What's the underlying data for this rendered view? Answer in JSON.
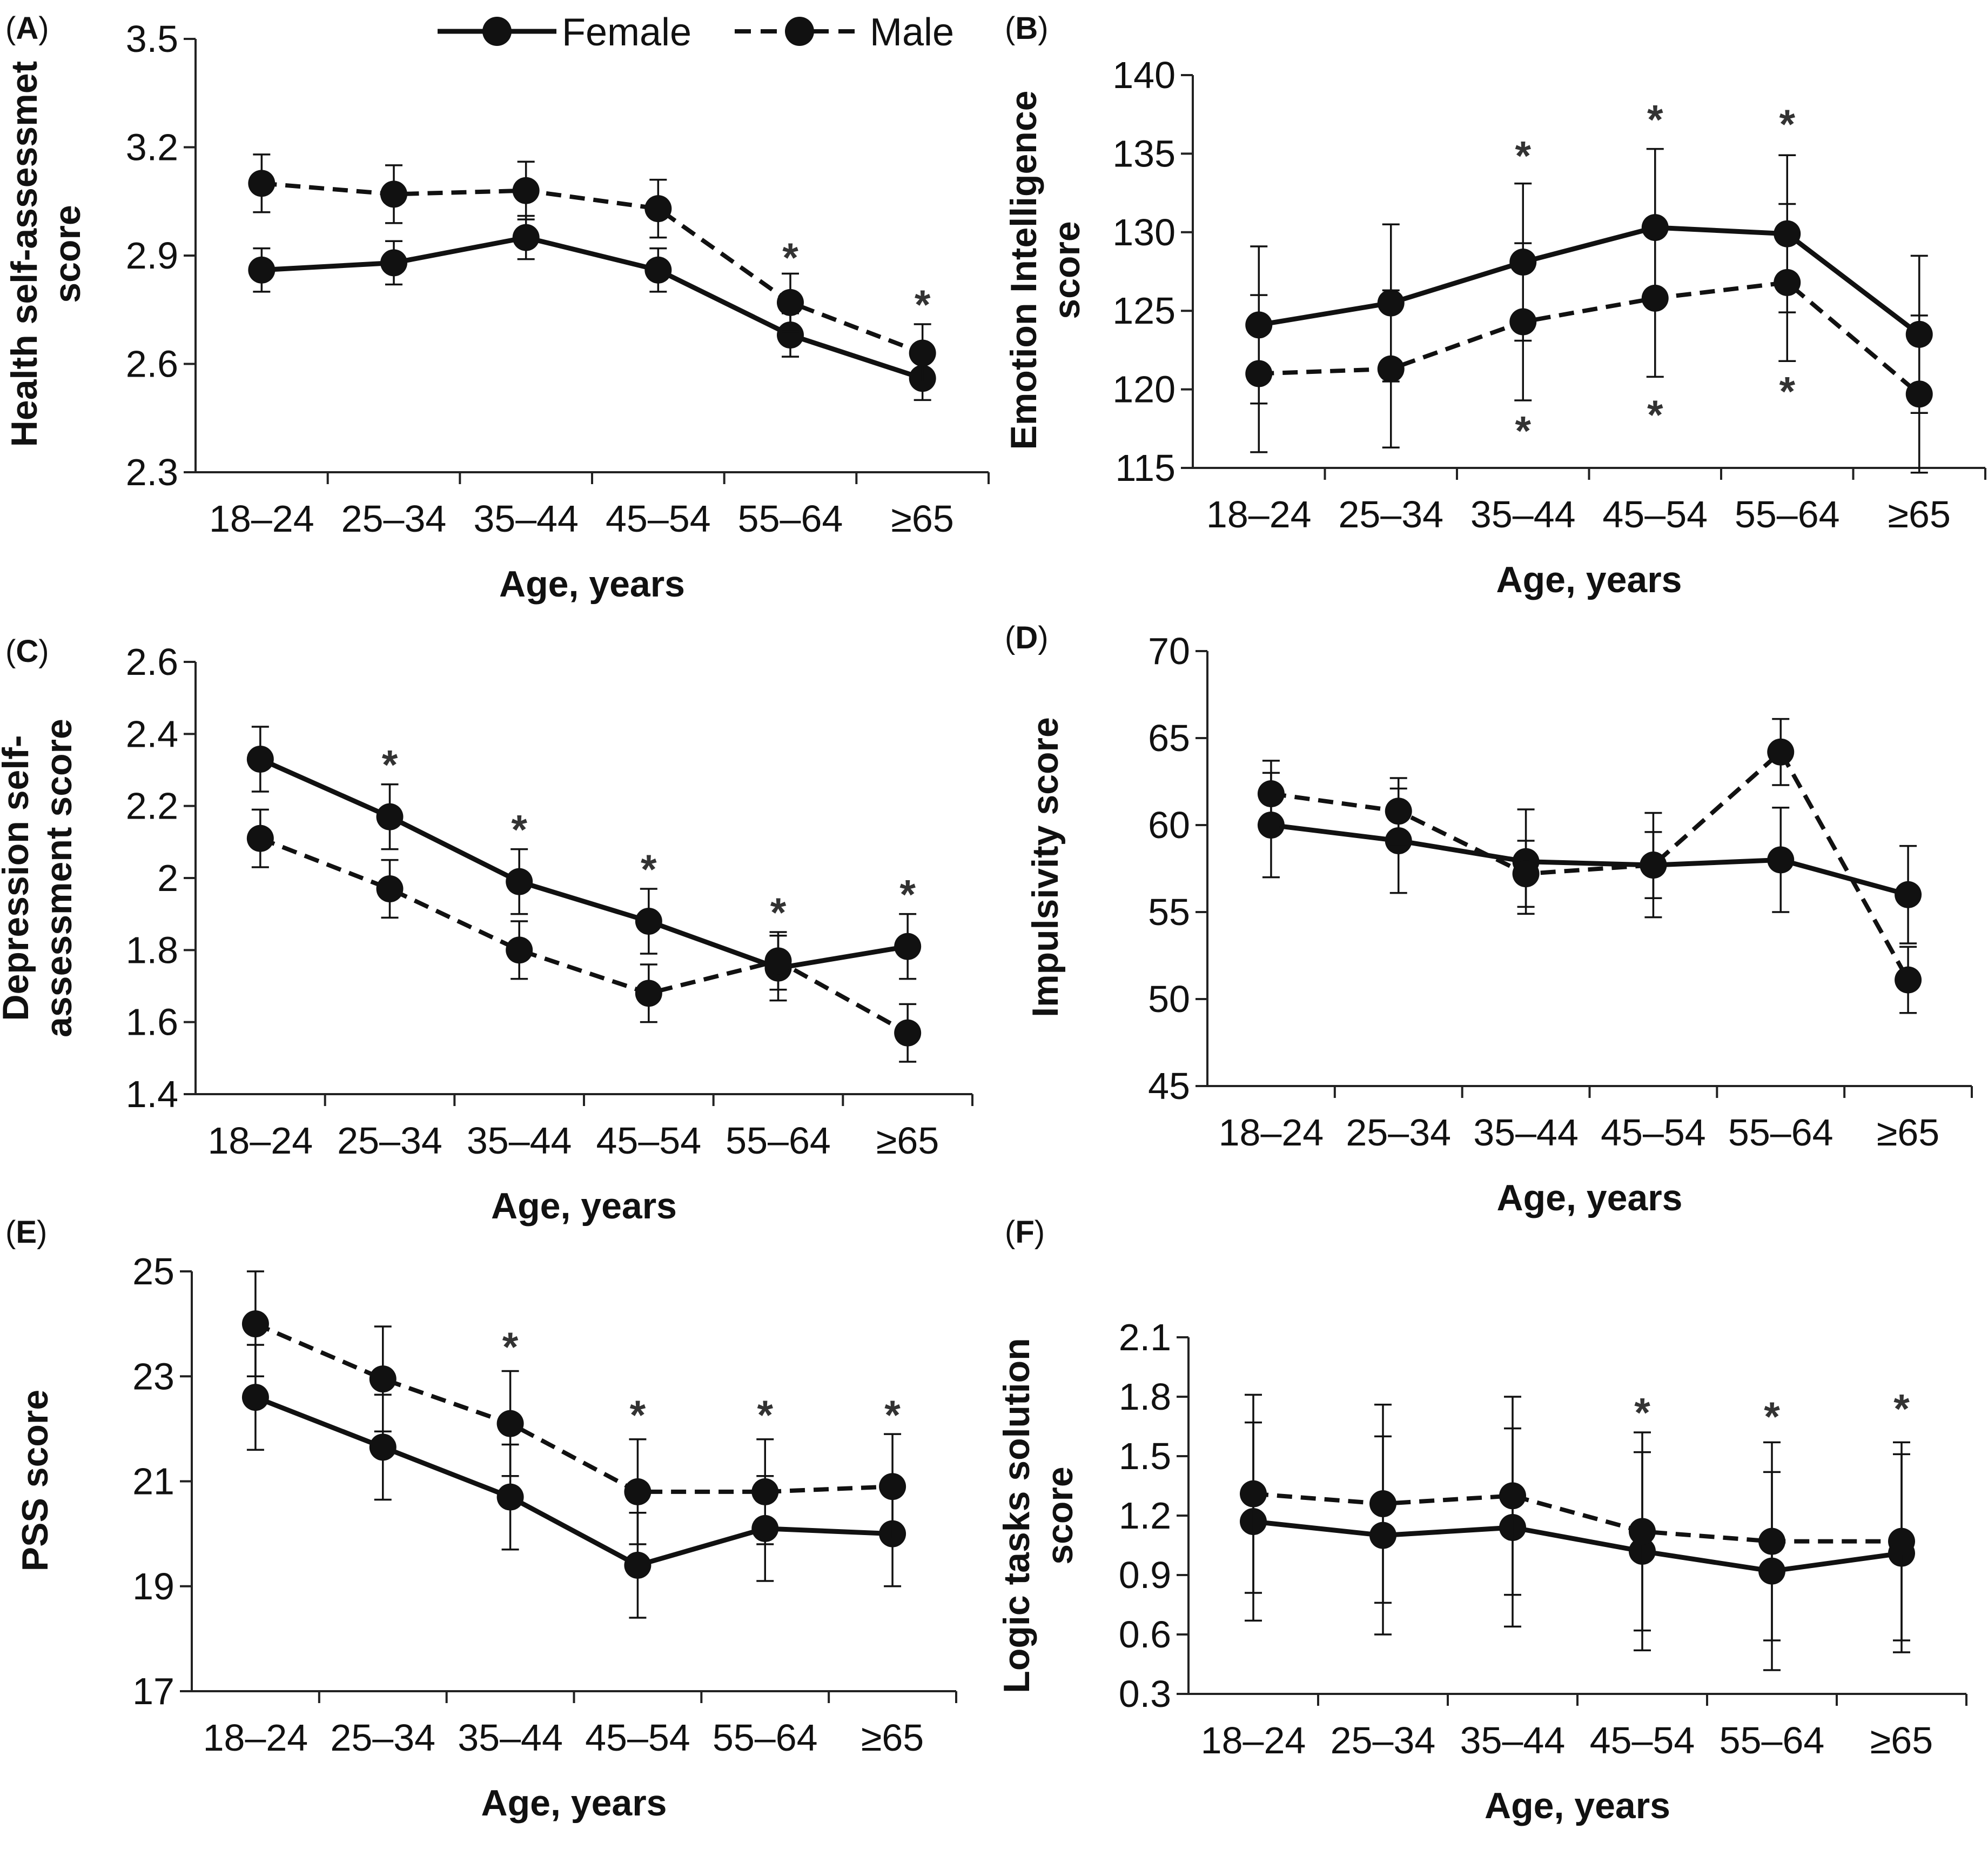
{
  "legend": {
    "female": "Female",
    "male": "Male"
  },
  "chart_data": [
    {
      "id": "A",
      "panel_label": "A",
      "type": "line",
      "ylabel": [
        "Health self-assessmet",
        "score"
      ],
      "xlabel": "Age, years",
      "categories": [
        "18–24",
        "25–34",
        "35–44",
        "45–54",
        "55–64",
        "≥65"
      ],
      "yticks": [
        "2.3",
        "2.6",
        "2.9",
        "3.2",
        "3.5"
      ],
      "ylim": [
        2.3,
        3.5
      ],
      "series": [
        {
          "name": "Female",
          "style": "solid",
          "values": [
            2.86,
            2.88,
            2.95,
            2.86,
            2.68,
            2.56
          ],
          "errors": [
            0.06,
            0.06,
            0.06,
            0.06,
            0.06,
            0.06
          ]
        },
        {
          "name": "Male",
          "style": "dashed",
          "values": [
            3.1,
            3.07,
            3.08,
            3.03,
            2.77,
            2.63
          ],
          "errors": [
            0.08,
            0.08,
            0.08,
            0.08,
            0.08,
            0.08
          ]
        }
      ],
      "significance": [
        {
          "category": "55–64",
          "marker": "*",
          "value": 2.9
        },
        {
          "category": "≥65",
          "marker": "*",
          "value": 2.77
        }
      ]
    },
    {
      "id": "B",
      "panel_label": "B",
      "type": "line",
      "ylabel": [
        "Emotion Intelligence",
        "score"
      ],
      "xlabel": "Age, years",
      "categories": [
        "18–24",
        "25–34",
        "35–44",
        "45–54",
        "55–64",
        "≥65"
      ],
      "yticks": [
        "115",
        "120",
        "125",
        "130",
        "135",
        "140"
      ],
      "ylim": [
        115,
        140
      ],
      "series": [
        {
          "name": "Female",
          "style": "solid",
          "values": [
            124.1,
            125.5,
            128.1,
            130.3,
            129.9,
            123.5
          ],
          "errors": [
            5,
            5,
            5,
            5,
            5,
            5
          ]
        },
        {
          "name": "Male",
          "style": "dashed",
          "values": [
            121,
            121.3,
            124.3,
            125.8,
            126.8,
            119.7
          ],
          "errors": [
            5,
            5,
            5,
            5,
            5,
            5
          ]
        }
      ],
      "significance": [
        {
          "category": "35–44",
          "marker": "*",
          "value": 135
        },
        {
          "category": "45–54",
          "marker": "*",
          "value": 137.3
        },
        {
          "category": "55–64",
          "marker": "*",
          "value": 137
        },
        {
          "category": "35–44",
          "marker": "*",
          "value": 117.5
        },
        {
          "category": "45–54",
          "marker": "*",
          "value": 118.5
        },
        {
          "category": "55–64",
          "marker": "*",
          "value": 120
        }
      ]
    },
    {
      "id": "C",
      "panel_label": "C",
      "type": "line",
      "ylabel": [
        "Depression self-",
        "assessment score"
      ],
      "xlabel": "Age, years",
      "categories": [
        "18–24",
        "25–34",
        "35–44",
        "45–54",
        "55–64",
        "≥65"
      ],
      "yticks": [
        "1.4",
        "1.6",
        "1.8",
        "2",
        "2.2",
        "2.4",
        "2.6"
      ],
      "ylim": [
        1.4,
        2.6
      ],
      "series": [
        {
          "name": "Female",
          "style": "solid",
          "values": [
            2.33,
            2.17,
            1.99,
            1.88,
            1.75,
            1.81
          ],
          "errors": [
            0.09,
            0.09,
            0.09,
            0.09,
            0.09,
            0.09
          ]
        },
        {
          "name": "Male",
          "style": "dashed",
          "values": [
            2.11,
            1.97,
            1.8,
            1.68,
            1.77,
            1.57
          ],
          "errors": [
            0.08,
            0.08,
            0.08,
            0.08,
            0.08,
            0.08
          ]
        }
      ],
      "significance": [
        {
          "category": "25–34",
          "marker": "*",
          "value": 2.32
        },
        {
          "category": "35–44",
          "marker": "*",
          "value": 2.14
        },
        {
          "category": "45–54",
          "marker": "*",
          "value": 2.03
        },
        {
          "category": "55–64",
          "marker": "*",
          "value": 1.91
        },
        {
          "category": "≥65",
          "marker": "*",
          "value": 1.96
        }
      ]
    },
    {
      "id": "D",
      "panel_label": "D",
      "type": "line",
      "ylabel": [
        "Impulsivity score"
      ],
      "xlabel": "Age, years",
      "categories": [
        "18–24",
        "25–34",
        "35–44",
        "45–54",
        "55–64",
        "≥65"
      ],
      "yticks": [
        "45",
        "50",
        "55",
        "60",
        "65",
        "70"
      ],
      "ylim": [
        45,
        70
      ],
      "series": [
        {
          "name": "Female",
          "style": "solid",
          "values": [
            60,
            59.1,
            57.9,
            57.7,
            58,
            56
          ],
          "errors": [
            3,
            3,
            3,
            3,
            3,
            2.8
          ]
        },
        {
          "name": "Male",
          "style": "dashed",
          "values": [
            61.8,
            60.8,
            57.2,
            57.7,
            64.2,
            51.1
          ],
          "errors": [
            1.9,
            1.9,
            1.9,
            1.9,
            1.9,
            1.9
          ]
        }
      ],
      "significance": []
    },
    {
      "id": "E",
      "panel_label": "E",
      "type": "line",
      "ylabel": [
        "PSS score"
      ],
      "xlabel": "Age, years",
      "categories": [
        "18–24",
        "25–34",
        "35–44",
        "45–54",
        "55–64",
        "≥65"
      ],
      "yticks": [
        "17",
        "19",
        "21",
        "23",
        "25"
      ],
      "ylim": [
        17,
        25
      ],
      "series": [
        {
          "name": "Female",
          "style": "solid",
          "values": [
            22.6,
            21.65,
            20.7,
            19.4,
            20.1,
            20
          ],
          "errors": [
            1,
            1,
            1,
            1,
            1,
            1
          ]
        },
        {
          "name": "Male",
          "style": "dashed",
          "values": [
            24,
            22.95,
            22.1,
            20.8,
            20.8,
            20.9
          ],
          "errors": [
            1,
            1,
            1,
            1,
            1,
            1
          ]
        }
      ],
      "significance": [
        {
          "category": "35–44",
          "marker": "*",
          "value": 23.6
        },
        {
          "category": "45–54",
          "marker": "*",
          "value": 22.3
        },
        {
          "category": "55–64",
          "marker": "*",
          "value": 22.3
        },
        {
          "category": "≥65",
          "marker": "*",
          "value": 22.3
        }
      ]
    },
    {
      "id": "F",
      "panel_label": "F",
      "type": "line",
      "ylabel": [
        "Logic tasks solution",
        "score"
      ],
      "xlabel": "Age, years",
      "categories": [
        "18–24",
        "25–34",
        "35–44",
        "45–54",
        "55–64",
        "≥65"
      ],
      "yticks": [
        "0.3",
        "0.6",
        "0.9",
        "1.2",
        "1.5",
        "1.8",
        "2.1"
      ],
      "ylim": [
        0.3,
        2.1
      ],
      "series": [
        {
          "name": "Female",
          "style": "solid",
          "values": [
            1.17,
            1.1,
            1.14,
            1.02,
            0.92,
            1.01
          ],
          "errors": [
            0.5,
            0.5,
            0.5,
            0.5,
            0.5,
            0.5
          ]
        },
        {
          "name": "Male",
          "style": "dashed",
          "values": [
            1.31,
            1.26,
            1.3,
            1.12,
            1.07,
            1.07
          ],
          "errors": [
            0.5,
            0.5,
            0.5,
            0.5,
            0.5,
            0.5
          ]
        }
      ],
      "significance": [
        {
          "category": "45–54",
          "marker": "*",
          "value": 1.73
        },
        {
          "category": "55–64",
          "marker": "*",
          "value": 1.71
        },
        {
          "category": "≥65",
          "marker": "*",
          "value": 1.75
        }
      ]
    }
  ]
}
